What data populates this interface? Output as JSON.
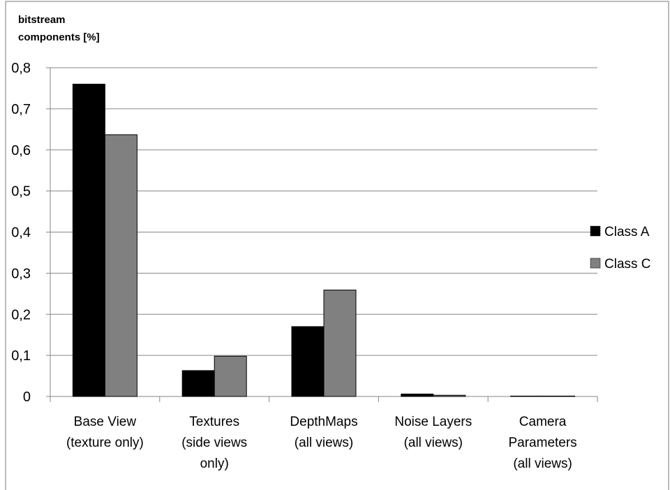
{
  "chart_data": {
    "type": "bar",
    "ylabel_lines": [
      "bitstream",
      "components [%]"
    ],
    "xlabel": "",
    "ylim": [
      0,
      0.8
    ],
    "yticks": [
      "0",
      "0,1",
      "0,2",
      "0,3",
      "0,4",
      "0,5",
      "0,6",
      "0,7",
      "0,8"
    ],
    "ytick_values": [
      0,
      0.1,
      0.2,
      0.3,
      0.4,
      0.5,
      0.6,
      0.7,
      0.8
    ],
    "grid": true,
    "legend_position": "right",
    "categories": [
      [
        "Base View",
        "(texture only)"
      ],
      [
        "Textures",
        "(side views",
        "only)"
      ],
      [
        "DepthMaps",
        "(all views)"
      ],
      [
        "Noise Layers",
        "(all views)"
      ],
      [
        "Camera",
        "Parameters",
        "(all views)"
      ]
    ],
    "series": [
      {
        "name": "Class A",
        "color": "#000000",
        "values": [
          0.76,
          0.063,
          0.17,
          0.006,
          0.001
        ]
      },
      {
        "name": "Class C",
        "color": "#808080",
        "values": [
          0.637,
          0.098,
          0.259,
          0.003,
          0.001
        ]
      }
    ]
  }
}
